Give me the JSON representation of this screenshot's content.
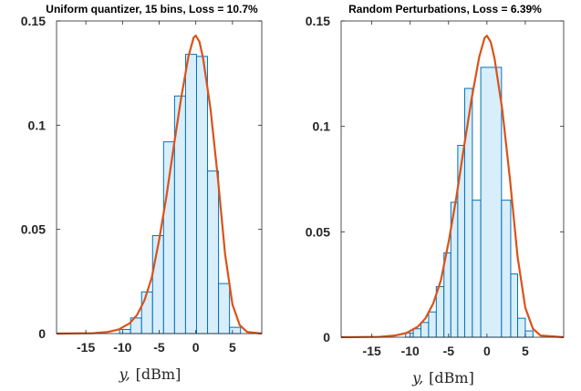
{
  "chart_data": [
    {
      "type": "bar",
      "title": "Uniform quantizer, 15 bins, Loss = 10.7%",
      "xlabel_var": "y,",
      "xlabel_unit": "[dBm]",
      "xlim": [
        -19,
        9
      ],
      "ylim": [
        0,
        0.15
      ],
      "xticks": [
        -15,
        -10,
        -5,
        0,
        5
      ],
      "xtick_labels": [
        "-15",
        "-10",
        "-5",
        "0",
        "5"
      ],
      "yticks": [
        0,
        0.05,
        0.1,
        0.15
      ],
      "ytick_labels": [
        "0",
        "0.05",
        "0.1",
        "0.15"
      ],
      "bins": [
        {
          "x0": -10.4,
          "x1": -8.9,
          "value": 0.002
        },
        {
          "x0": -8.9,
          "x1": -7.4,
          "value": 0.0075
        },
        {
          "x0": -7.4,
          "x1": -5.9,
          "value": 0.02
        },
        {
          "x0": -5.9,
          "x1": -4.4,
          "value": 0.047
        },
        {
          "x0": -4.4,
          "x1": -2.9,
          "value": 0.092
        },
        {
          "x0": -2.9,
          "x1": -1.4,
          "value": 0.114
        },
        {
          "x0": -1.4,
          "x1": 0.1,
          "value": 0.134
        },
        {
          "x0": 0.1,
          "x1": 1.6,
          "value": 0.133
        },
        {
          "x0": 1.6,
          "x1": 3.1,
          "value": 0.078
        },
        {
          "x0": 3.1,
          "x1": 4.6,
          "value": 0.024
        },
        {
          "x0": 4.6,
          "x1": 6.1,
          "value": 0.003
        }
      ],
      "pdf": {
        "x": [
          -19,
          -14,
          -12,
          -10.5,
          -9,
          -8,
          -7,
          -6,
          -5,
          -4,
          -3,
          -2,
          -1,
          -0.3,
          0,
          0.5,
          1,
          2,
          3,
          4,
          5,
          6,
          7,
          9
        ],
        "y": [
          0,
          0.0002,
          0.0008,
          0.002,
          0.005,
          0.009,
          0.016,
          0.027,
          0.045,
          0.066,
          0.09,
          0.113,
          0.133,
          0.142,
          0.143,
          0.14,
          0.132,
          0.108,
          0.075,
          0.038,
          0.014,
          0.004,
          0.0008,
          0
        ]
      },
      "colors": {
        "bar_fill": "#d8eefa",
        "bar_edge": "#0072bd",
        "curve": "#d95319"
      }
    },
    {
      "type": "bar",
      "title": "Random Perturbations, Loss = 6.39%",
      "xlabel_var": "y,",
      "xlabel_unit": "[dBm]",
      "xlim": [
        -19,
        10
      ],
      "ylim": [
        0,
        0.15
      ],
      "xticks": [
        -15,
        -10,
        -5,
        0,
        5
      ],
      "xtick_labels": [
        "-15",
        "-10",
        "-5",
        "0",
        "5"
      ],
      "yticks": [
        0,
        0.05,
        0.1,
        0.15
      ],
      "ytick_labels": [
        "0",
        "0.05",
        "0.1",
        "0.15"
      ],
      "bins": [
        {
          "x0": -10.6,
          "x1": -9.6,
          "value": 0.002
        },
        {
          "x0": -9.6,
          "x1": -8.6,
          "value": 0.004
        },
        {
          "x0": -8.6,
          "x1": -7.6,
          "value": 0.007
        },
        {
          "x0": -7.6,
          "x1": -6.6,
          "value": 0.012
        },
        {
          "x0": -6.6,
          "x1": -5.6,
          "value": 0.024
        },
        {
          "x0": -5.6,
          "x1": -4.7,
          "value": 0.04
        },
        {
          "x0": -4.7,
          "x1": -3.8,
          "value": 0.064
        },
        {
          "x0": -3.8,
          "x1": -2.9,
          "value": 0.091
        },
        {
          "x0": -2.9,
          "x1": -1.9,
          "value": 0.118
        },
        {
          "x0": -1.9,
          "x1": -0.8,
          "value": 0.065
        },
        {
          "x0": -0.8,
          "x1": 1.9,
          "value": 0.128
        },
        {
          "x0": 1.9,
          "x1": 3.1,
          "value": 0.065
        },
        {
          "x0": 3.1,
          "x1": 4.0,
          "value": 0.03
        },
        {
          "x0": 4.0,
          "x1": 5.0,
          "value": 0.009
        },
        {
          "x0": 5.0,
          "x1": 6.0,
          "value": 0.003
        }
      ],
      "pdf": {
        "x": [
          -19,
          -14,
          -12,
          -10.5,
          -9,
          -8,
          -7,
          -6,
          -5,
          -4,
          -3,
          -2,
          -1,
          -0.3,
          0,
          0.5,
          1,
          2,
          3,
          4,
          5,
          6,
          7,
          10
        ],
        "y": [
          0,
          0.0002,
          0.0008,
          0.002,
          0.005,
          0.009,
          0.016,
          0.027,
          0.045,
          0.066,
          0.09,
          0.113,
          0.133,
          0.142,
          0.143,
          0.14,
          0.132,
          0.108,
          0.075,
          0.038,
          0.014,
          0.004,
          0.0008,
          0
        ]
      },
      "colors": {
        "bar_fill": "#d8eefa",
        "bar_edge": "#0072bd",
        "curve": "#d95319"
      }
    }
  ]
}
